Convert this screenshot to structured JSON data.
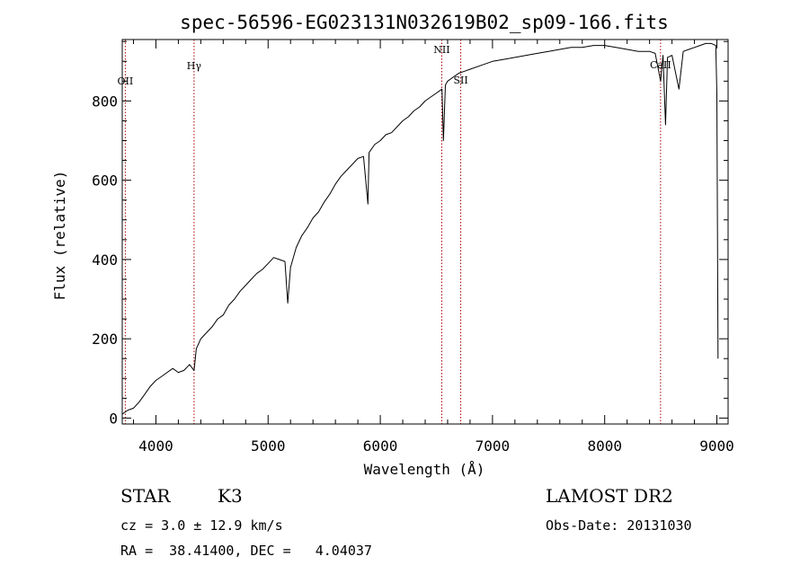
{
  "chart_data": {
    "type": "line",
    "title": "spec-56596-EG023131N032619B02_sp09-166.fits",
    "xlabel": "Wavelength (Å)",
    "ylabel": "Flux (relative)",
    "xlim": [
      3700,
      9100
    ],
    "ylim": [
      -15,
      955
    ],
    "x_ticks": [
      4000,
      5000,
      6000,
      7000,
      8000,
      9000
    ],
    "y_ticks": [
      0,
      200,
      400,
      600,
      800
    ],
    "grid": false,
    "line_color": "#000000",
    "marker_color": "#aa0000",
    "spectral_lines": [
      {
        "label": "OII",
        "x": 3727
      },
      {
        "label": "Hγ",
        "x": 4340
      },
      {
        "label": "NII",
        "x": 6548
      },
      {
        "label": "SII",
        "x": 6717
      },
      {
        "label": "CaII",
        "x": 8498
      }
    ],
    "series": [
      {
        "x": [
          3700,
          3750,
          3800,
          3850,
          3900,
          3950,
          4000,
          4050,
          4100,
          4150,
          4200,
          4250,
          4300,
          4340,
          4360,
          4400,
          4450,
          4500,
          4550,
          4600,
          4650,
          4700,
          4750,
          4800,
          4850,
          4900,
          4950,
          5000,
          5050,
          5100,
          5150,
          5175,
          5200,
          5250,
          5300,
          5350,
          5400,
          5450,
          5500,
          5550,
          5600,
          5650,
          5700,
          5750,
          5800,
          5850,
          5890,
          5900,
          5950,
          6000,
          6050,
          6100,
          6150,
          6200,
          6250,
          6300,
          6350,
          6400,
          6450,
          6500,
          6550,
          6563,
          6580,
          6600,
          6650,
          6700,
          6750,
          6800,
          6900,
          7000,
          7100,
          7200,
          7300,
          7400,
          7500,
          7600,
          7700,
          7800,
          7900,
          8000,
          8100,
          8200,
          8300,
          8400,
          8450,
          8498,
          8520,
          8542,
          8560,
          8600,
          8662,
          8700,
          8750,
          8800,
          8850,
          8900,
          8950,
          8990,
          9000,
          9010
        ],
        "values": [
          10,
          20,
          25,
          40,
          60,
          80,
          95,
          105,
          115,
          125,
          115,
          120,
          135,
          120,
          175,
          200,
          215,
          230,
          250,
          260,
          285,
          300,
          320,
          335,
          350,
          365,
          375,
          390,
          405,
          400,
          395,
          290,
          380,
          430,
          460,
          480,
          505,
          520,
          545,
          565,
          590,
          610,
          625,
          640,
          655,
          660,
          540,
          670,
          690,
          700,
          715,
          720,
          735,
          750,
          760,
          775,
          785,
          800,
          810,
          820,
          830,
          700,
          840,
          850,
          860,
          870,
          875,
          880,
          890,
          900,
          905,
          910,
          915,
          920,
          925,
          930,
          935,
          935,
          940,
          940,
          935,
          930,
          925,
          925,
          920,
          850,
          915,
          740,
          910,
          915,
          830,
          925,
          930,
          935,
          940,
          945,
          945,
          940,
          820,
          150
        ]
      }
    ]
  },
  "info": {
    "object_class": "STAR",
    "subclass": "K3",
    "survey": "LAMOST DR2",
    "redshift_text": "cz = 3.0 ± 12.9 km/s",
    "obs_date_text": "Obs-Date: 20131030",
    "coords_text": "RA =  38.41400, DEC =   4.04037"
  }
}
